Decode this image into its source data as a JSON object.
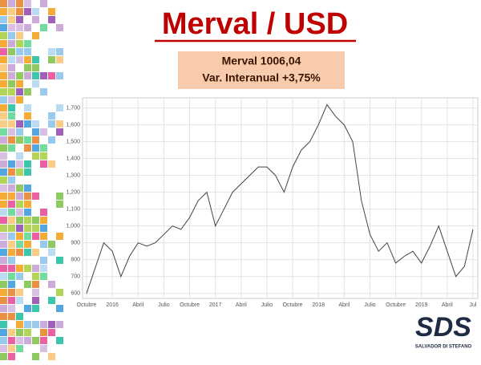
{
  "chart_data": {
    "type": "line",
    "title": "Merval / USD",
    "info": [
      "Merval 1006,04",
      "Var. Interanual +3,75%"
    ],
    "logo": {
      "text": "SDS",
      "subtitle": "SALVADOR DI STEFANO"
    },
    "categories": [
      "Octubre",
      null,
      null,
      "2016",
      null,
      null,
      "Abril",
      null,
      null,
      "Julio",
      null,
      null,
      "Octubre",
      null,
      null,
      "2017",
      null,
      null,
      "Abril",
      null,
      null,
      "Julio",
      null,
      null,
      "Octubre",
      null,
      null,
      "2018",
      null,
      null,
      "Abril",
      null,
      null,
      "Julio",
      null,
      null,
      "Octubre",
      null,
      null,
      "2019",
      null,
      null,
      "Abril",
      null,
      null,
      "Jul"
    ],
    "series": [
      {
        "color": "#444444",
        "values": [
          600,
          750,
          900,
          850,
          700,
          820,
          900,
          880,
          900,
          950,
          1000,
          980,
          1050,
          1150,
          1200,
          1000,
          1100,
          1200,
          1250,
          1300,
          1350,
          1350,
          1300,
          1200,
          1350,
          1450,
          1500,
          1600,
          1720,
          1650,
          1600,
          1500,
          1150,
          950,
          850,
          900,
          780,
          820,
          850,
          780,
          880,
          1000,
          850,
          700,
          760,
          980
        ]
      }
    ],
    "ylim": [
      570,
      1760
    ],
    "yticks": [
      600,
      700,
      800,
      900,
      {
        "value": 1000,
        "label": "1,000"
      },
      {
        "value": 1100,
        "label": "1,100"
      },
      {
        "value": 1200,
        "label": "1,200"
      },
      {
        "value": 1300,
        "label": "1,300"
      },
      {
        "value": 1400,
        "label": "1,400"
      },
      {
        "value": 1500,
        "label": "1,500"
      },
      {
        "value": 1600,
        "label": "1,600"
      },
      {
        "value": 1700,
        "label": "1,700"
      }
    ],
    "grid": true
  }
}
